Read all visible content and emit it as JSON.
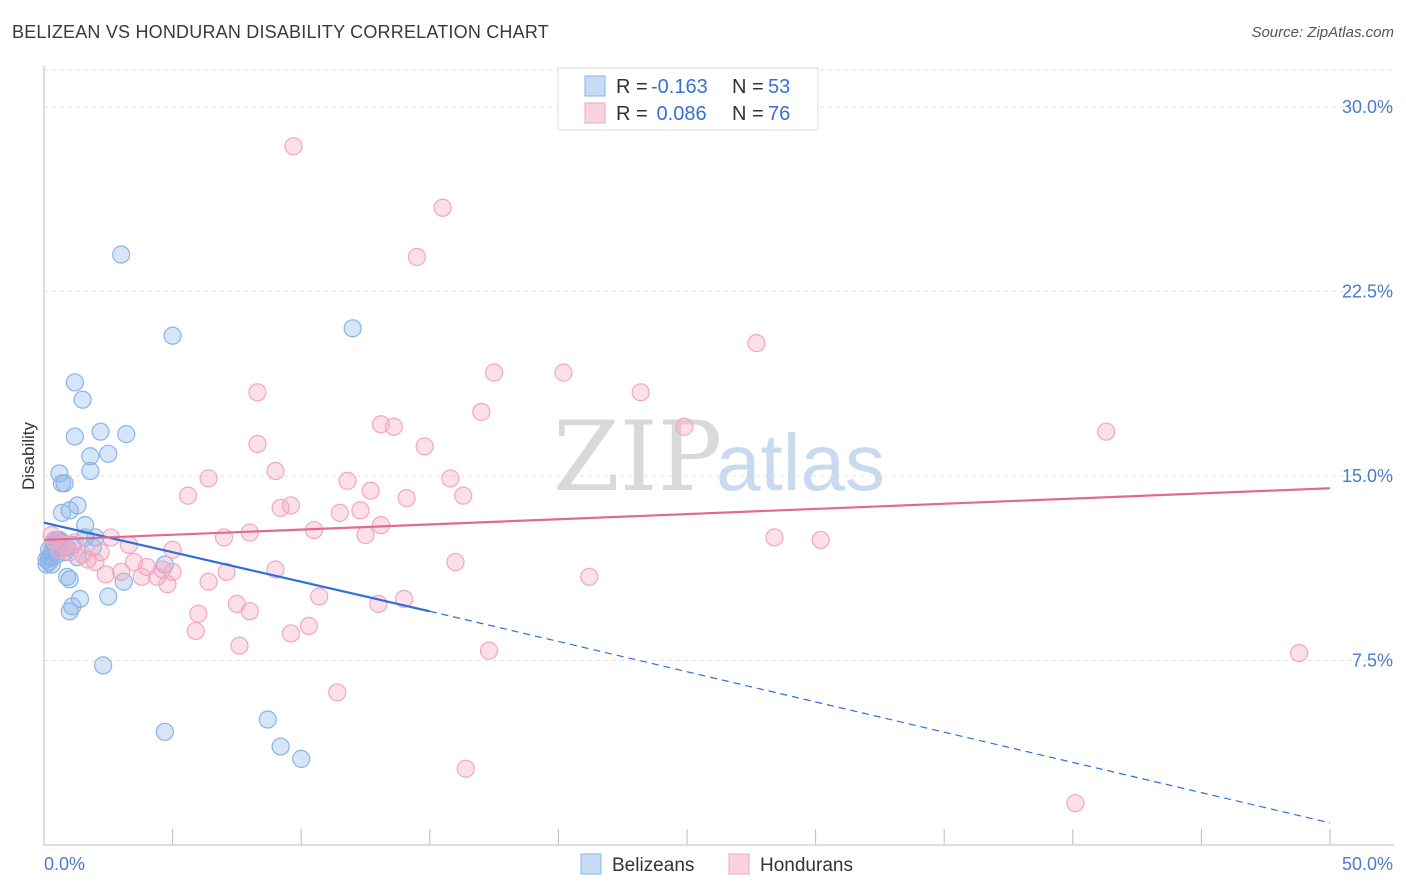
{
  "header": {
    "title": "BELIZEAN VS HONDURAN DISABILITY CORRELATION CHART",
    "source": "Source: ZipAtlas.com"
  },
  "watermark": {
    "zip": "ZIP",
    "atlas": "atlas"
  },
  "legend": {
    "rows": [
      {
        "r_label": "R = ",
        "r_value": "-0.163",
        "n_label": "N = ",
        "n_value": "53",
        "color": "#8ab4e8"
      },
      {
        "r_label": "R = ",
        "r_value": " 0.086",
        "n_label": "N = ",
        "n_value": "76",
        "color": "#f4a6bf"
      }
    ]
  },
  "bottom_legend": [
    {
      "label": "Belizeans",
      "color": "#8ab4e8"
    },
    {
      "label": "Hondurans",
      "color": "#f4a6bf"
    }
  ],
  "chart_data": {
    "type": "scatter",
    "title": "BELIZEAN VS HONDURAN DISABILITY CORRELATION CHART",
    "xlabel": "",
    "ylabel": "Disability",
    "xlim": [
      0,
      50
    ],
    "ylim": [
      0,
      31.5
    ],
    "x_tick_labels": [
      "0.0%",
      "50.0%"
    ],
    "y_ticks": [
      7.5,
      15.0,
      22.5,
      30.0
    ],
    "y_tick_labels": [
      "7.5%",
      "15.0%",
      "22.5%",
      "30.0%"
    ],
    "grid": true,
    "legend_position": "top-center",
    "series": [
      {
        "name": "Belizeans",
        "color": "#8ab4e8",
        "line_color": "#2f6fd6",
        "trend": {
          "x0": 0,
          "y0": 13.1,
          "x1": 15,
          "y1": 9.5,
          "dashed_to_x": 50,
          "dashed_to_y": 0.9
        },
        "points": [
          [
            3.0,
            24.0
          ],
          [
            5.0,
            20.7
          ],
          [
            12.0,
            21.0
          ],
          [
            1.2,
            18.8
          ],
          [
            1.5,
            18.1
          ],
          [
            1.2,
            16.6
          ],
          [
            2.2,
            16.8
          ],
          [
            3.2,
            16.7
          ],
          [
            1.8,
            15.8
          ],
          [
            2.5,
            15.9
          ],
          [
            1.8,
            15.2
          ],
          [
            0.6,
            15.1
          ],
          [
            0.7,
            14.7
          ],
          [
            0.8,
            14.7
          ],
          [
            1.3,
            13.8
          ],
          [
            1.0,
            13.6
          ],
          [
            0.7,
            13.5
          ],
          [
            1.6,
            13.0
          ],
          [
            1.6,
            12.5
          ],
          [
            2.0,
            12.5
          ],
          [
            0.5,
            12.4
          ],
          [
            0.7,
            12.3
          ],
          [
            0.4,
            12.2
          ],
          [
            1.9,
            12.1
          ],
          [
            0.6,
            12.0
          ],
          [
            0.3,
            11.9
          ],
          [
            0.8,
            11.9
          ],
          [
            0.2,
            11.7
          ],
          [
            1.3,
            11.7
          ],
          [
            0.1,
            11.6
          ],
          [
            0.3,
            11.4
          ],
          [
            0.1,
            11.4
          ],
          [
            0.2,
            11.5
          ],
          [
            4.7,
            11.4
          ],
          [
            0.9,
            10.9
          ],
          [
            1.0,
            10.8
          ],
          [
            3.1,
            10.7
          ],
          [
            2.5,
            10.1
          ],
          [
            1.4,
            10.0
          ],
          [
            1.1,
            9.7
          ],
          [
            1.0,
            9.5
          ],
          [
            2.3,
            7.3
          ],
          [
            4.7,
            4.6
          ],
          [
            8.7,
            5.1
          ],
          [
            9.2,
            4.0
          ],
          [
            10.0,
            3.5
          ],
          [
            0.4,
            12.3
          ],
          [
            0.5,
            11.8
          ],
          [
            0.2,
            12.0
          ],
          [
            0.9,
            12.1
          ],
          [
            1.1,
            12.2
          ],
          [
            0.3,
            11.7
          ],
          [
            0.6,
            12.4
          ]
        ]
      },
      {
        "name": "Hondurans",
        "color": "#f4a6bf",
        "line_color": "#e16a93",
        "trend": {
          "x0": 0,
          "y0": 12.4,
          "x1": 50,
          "y1": 14.5
        },
        "points": [
          [
            9.7,
            28.4
          ],
          [
            15.5,
            25.9
          ],
          [
            14.5,
            23.9
          ],
          [
            27.7,
            20.4
          ],
          [
            17.5,
            19.2
          ],
          [
            20.2,
            19.2
          ],
          [
            8.3,
            18.4
          ],
          [
            23.2,
            18.4
          ],
          [
            17.0,
            17.6
          ],
          [
            13.1,
            17.1
          ],
          [
            13.6,
            17.0
          ],
          [
            24.9,
            17.0
          ],
          [
            41.3,
            16.8
          ],
          [
            8.3,
            16.3
          ],
          [
            14.8,
            16.2
          ],
          [
            6.4,
            14.9
          ],
          [
            9.0,
            15.2
          ],
          [
            11.8,
            14.8
          ],
          [
            15.8,
            14.9
          ],
          [
            5.6,
            14.2
          ],
          [
            12.7,
            14.4
          ],
          [
            16.3,
            14.2
          ],
          [
            14.1,
            14.1
          ],
          [
            9.6,
            13.8
          ],
          [
            9.2,
            13.7
          ],
          [
            11.5,
            13.5
          ],
          [
            12.3,
            13.6
          ],
          [
            13.1,
            13.0
          ],
          [
            10.5,
            12.8
          ],
          [
            8.0,
            12.7
          ],
          [
            7.0,
            12.5
          ],
          [
            12.5,
            12.6
          ],
          [
            28.4,
            12.5
          ],
          [
            30.2,
            12.4
          ],
          [
            2.6,
            12.5
          ],
          [
            3.3,
            12.2
          ],
          [
            5.0,
            12.0
          ],
          [
            0.4,
            12.4
          ],
          [
            0.8,
            12.2
          ],
          [
            1.5,
            11.8
          ],
          [
            1.7,
            11.6
          ],
          [
            2.0,
            11.5
          ],
          [
            3.5,
            11.5
          ],
          [
            4.0,
            11.3
          ],
          [
            4.6,
            11.2
          ],
          [
            5.0,
            11.1
          ],
          [
            2.4,
            11.0
          ],
          [
            3.0,
            11.1
          ],
          [
            9.0,
            11.2
          ],
          [
            16.0,
            11.5
          ],
          [
            3.8,
            10.9
          ],
          [
            4.4,
            10.9
          ],
          [
            4.8,
            10.6
          ],
          [
            6.4,
            10.7
          ],
          [
            7.1,
            11.1
          ],
          [
            21.2,
            10.9
          ],
          [
            10.7,
            10.1
          ],
          [
            14.0,
            10.0
          ],
          [
            13.0,
            9.8
          ],
          [
            7.5,
            9.8
          ],
          [
            8.0,
            9.5
          ],
          [
            6.0,
            9.4
          ],
          [
            10.3,
            8.9
          ],
          [
            9.6,
            8.6
          ],
          [
            5.9,
            8.7
          ],
          [
            7.6,
            8.1
          ],
          [
            17.3,
            7.9
          ],
          [
            48.8,
            7.8
          ],
          [
            11.4,
            6.2
          ],
          [
            16.4,
            3.1
          ],
          [
            40.1,
            1.7
          ],
          [
            0.6,
            12.0
          ],
          [
            1.0,
            11.9
          ],
          [
            2.2,
            11.9
          ],
          [
            1.2,
            12.3
          ],
          [
            0.3,
            12.6
          ]
        ]
      }
    ]
  }
}
